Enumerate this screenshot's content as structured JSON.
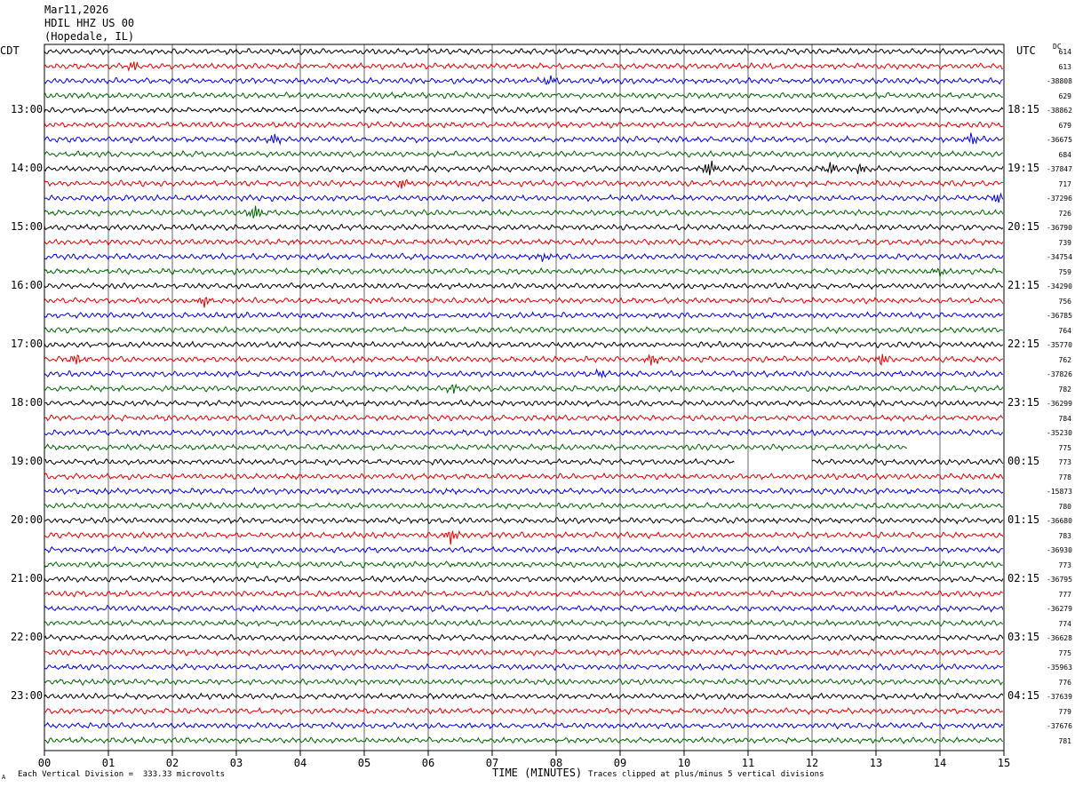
{
  "header": {
    "date": "Mar11,2026",
    "station": "HDIL HHZ US 00",
    "location": "(Hopedale, IL)"
  },
  "left_tz": "CDT",
  "right_tz": "UTC",
  "dc_label": "DC",
  "footer": {
    "scale": "Each Vertical Division =  333.33 microvolts",
    "clip_note": "Traces clipped at plus/minus 5 vertical divisions",
    "corner_mark": "A"
  },
  "chart_data": {
    "type": "line",
    "xlabel": "TIME (MINUTES)",
    "x_ticks": [
      "00",
      "01",
      "02",
      "03",
      "04",
      "05",
      "06",
      "07",
      "08",
      "09",
      "10",
      "11",
      "12",
      "13",
      "14",
      "15"
    ],
    "xlim": [
      0,
      15
    ],
    "trace_count": 48,
    "trace_colors": [
      "#000000",
      "#e00000",
      "#0000e0",
      "#006400"
    ],
    "left_hour_labels": [
      "13:00",
      "14:00",
      "15:00",
      "16:00",
      "17:00",
      "18:00",
      "19:00",
      "20:00",
      "21:00",
      "22:00",
      "23:00"
    ],
    "right_hour_labels": [
      "18:15",
      "19:15",
      "20:15",
      "21:15",
      "22:15",
      "23:15",
      "00:15",
      "01:15",
      "02:15",
      "03:15",
      "04:15"
    ],
    "dc_offsets": [
      "614",
      "613",
      "-38808",
      "629",
      "-38862",
      "679",
      "-36675",
      "684",
      "-37847",
      "717",
      "-37296",
      "726",
      "-36790",
      "739",
      "-34754",
      "759",
      "-34290",
      "756",
      "-36785",
      "764",
      "-35770",
      "762",
      "-37826",
      "782",
      "-36299",
      "784",
      "-35230",
      "775",
      "773",
      "778",
      "-15873",
      "780",
      "-36680",
      "783",
      "-36930",
      "773",
      "-36795",
      "777",
      "-36279",
      "774",
      "-36628",
      "775",
      "-35963",
      "776",
      "-37639",
      "779",
      "-37676",
      "781"
    ],
    "gaps": [
      {
        "trace": 27,
        "start_min": 13.5,
        "end_min": 15
      },
      {
        "trace": 28,
        "start_min": 10.8,
        "end_min": 12.0
      }
    ],
    "events": [
      {
        "trace": 1,
        "minute": 1.4,
        "amp": 5
      },
      {
        "trace": 2,
        "minute": 7.9,
        "amp": 4
      },
      {
        "trace": 6,
        "minute": 3.6,
        "amp": 5
      },
      {
        "trace": 6,
        "minute": 14.5,
        "amp": 6
      },
      {
        "trace": 8,
        "minute": 10.4,
        "amp": 8
      },
      {
        "trace": 8,
        "minute": 12.3,
        "amp": 6
      },
      {
        "trace": 8,
        "minute": 12.75,
        "amp": 5
      },
      {
        "trace": 9,
        "minute": 5.6,
        "amp": 5
      },
      {
        "trace": 10,
        "minute": 14.9,
        "amp": 5
      },
      {
        "trace": 11,
        "minute": 3.3,
        "amp": 7
      },
      {
        "trace": 14,
        "minute": 7.8,
        "amp": 4
      },
      {
        "trace": 15,
        "minute": 14.0,
        "amp": 4
      },
      {
        "trace": 17,
        "minute": 2.5,
        "amp": 6
      },
      {
        "trace": 21,
        "minute": 0.5,
        "amp": 5
      },
      {
        "trace": 21,
        "minute": 9.5,
        "amp": 6
      },
      {
        "trace": 21,
        "minute": 13.1,
        "amp": 6
      },
      {
        "trace": 22,
        "minute": 8.7,
        "amp": 4
      },
      {
        "trace": 23,
        "minute": 6.4,
        "amp": 4
      },
      {
        "trace": 33,
        "minute": 6.35,
        "amp": 7
      }
    ]
  }
}
